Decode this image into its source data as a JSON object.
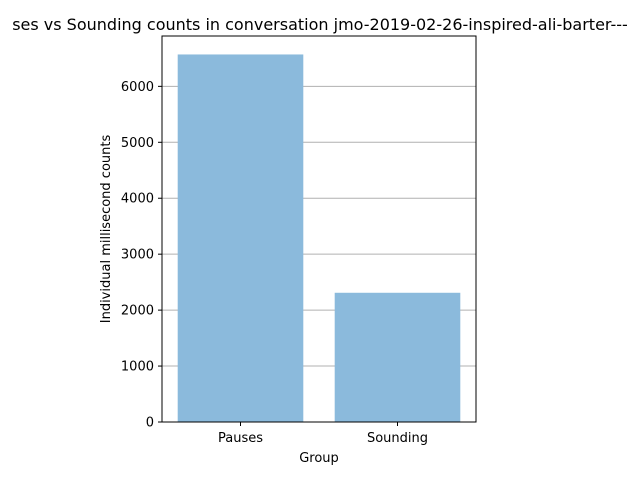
{
  "chart_data": {
    "type": "bar",
    "title": "ses vs Sounding counts in conversation jmo-2019-02-26-inspired-ali-barter---",
    "xlabel": "Group",
    "ylabel": "Individual millisecond counts",
    "categories": [
      "Pauses",
      "Sounding"
    ],
    "values": [
      6570,
      2310
    ],
    "ylim": [
      0,
      6900
    ],
    "yticks": [
      0,
      1000,
      2000,
      3000,
      4000,
      5000,
      6000
    ],
    "grid": "horizontal",
    "bar_color": "#8bbadc"
  }
}
